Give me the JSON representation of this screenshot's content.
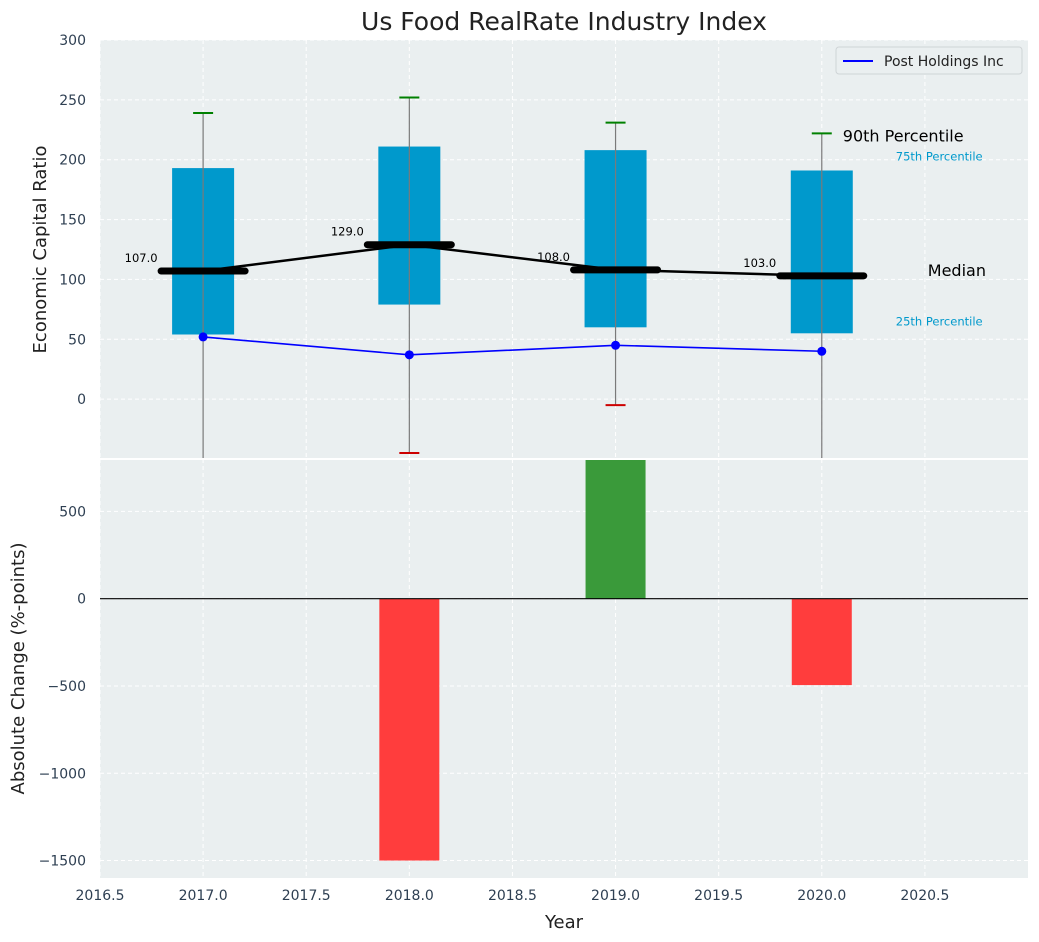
{
  "chart_data": [
    {
      "type": "box",
      "title": "Us Food RealRate Industry Index",
      "xlabel": "",
      "ylabel": "Economic Capital Ratio",
      "xlim": [
        2016.5,
        2021.0
      ],
      "ylim": [
        -50,
        300
      ],
      "yticks": [
        0,
        50,
        100,
        150,
        200,
        250,
        300
      ],
      "grid": true,
      "legend_position": "top-right",
      "years": [
        2017,
        2018,
        2019,
        2020
      ],
      "p25": [
        54,
        79,
        60,
        55
      ],
      "p75": [
        193,
        211,
        208,
        191
      ],
      "median": [
        107,
        129,
        108,
        103
      ],
      "median_labels": [
        "107.0",
        "129.0",
        "108.0",
        "103.0"
      ],
      "whisker_low": [
        -50,
        -45,
        -5,
        -50
      ],
      "whisker_high": [
        239,
        252,
        231,
        222
      ],
      "p90_cap_value": [
        239,
        252,
        231,
        222
      ],
      "p10_cap_value": [
        null,
        -45,
        -5,
        null
      ],
      "series": [
        {
          "name": "Post Holdings Inc",
          "values": [
            52,
            37,
            45,
            40
          ],
          "color": "#0000ff"
        }
      ],
      "annotations": {
        "p90": "90th Percentile",
        "p75": "75th Percentile",
        "median": "Median",
        "p25": "25th Percentile"
      },
      "colors": {
        "box": "#0099cc",
        "median": "#000000",
        "cap_high": "#008000",
        "cap_low": "#cc0000",
        "background": "#eaeff0"
      }
    },
    {
      "type": "bar",
      "title": "",
      "xlabel": "Year",
      "ylabel": "Absolute Change (%-points)",
      "xlim": [
        2016.5,
        2021.0
      ],
      "ylim": [
        -1600,
        800
      ],
      "xticks": [
        2016.5,
        2017.0,
        2017.5,
        2018.0,
        2018.5,
        2019.0,
        2019.5,
        2020.0,
        2020.5
      ],
      "xtick_labels": [
        "2016.5",
        "2017.0",
        "2017.5",
        "2018.0",
        "2018.5",
        "2019.0",
        "2019.5",
        "2020.0",
        "2020.5"
      ],
      "yticks": [
        -1500,
        -1000,
        -500,
        0,
        500
      ],
      "ytick_labels": [
        "−1500",
        "−1000",
        "−500",
        "0",
        "500"
      ],
      "grid": true,
      "x": [
        2018,
        2019,
        2020
      ],
      "values": [
        -1500,
        795,
        -495
      ],
      "colors": {
        "positive": "#3a9a3a",
        "negative": "#ff3d3d",
        "background": "#eaeff0"
      }
    }
  ]
}
